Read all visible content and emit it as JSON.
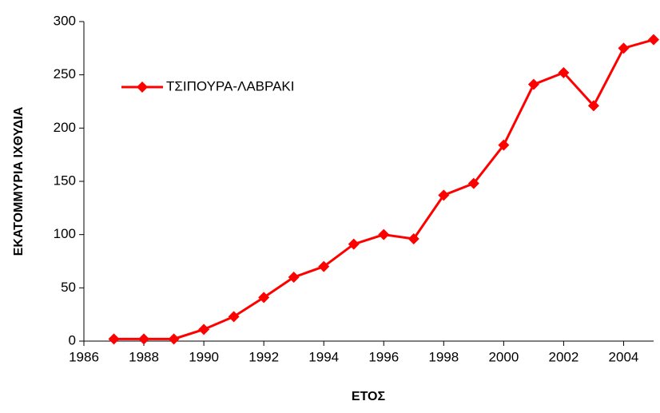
{
  "chart_data": {
    "type": "line",
    "x": [
      1987,
      1988,
      1989,
      1990,
      1991,
      1992,
      1993,
      1994,
      1995,
      1996,
      1997,
      1998,
      1999,
      2000,
      2001,
      2002,
      2003,
      2004,
      2005
    ],
    "series": [
      {
        "name": "ΤΣΙΠΟΥΡΑ-ΛΑΒΡΑΚΙ",
        "color": "#ff0000",
        "values": [
          2,
          2,
          2,
          11,
          23,
          41,
          60,
          70,
          91,
          100,
          96,
          137,
          148,
          184,
          241,
          252,
          221,
          275,
          283
        ]
      }
    ],
    "xlim": [
      1986,
      2005
    ],
    "xticks": [
      1986,
      1988,
      1990,
      1992,
      1994,
      1996,
      1998,
      2000,
      2002,
      2004
    ],
    "ylim": [
      0,
      300
    ],
    "yticks": [
      0,
      50,
      100,
      150,
      200,
      250,
      300
    ],
    "xlabel": "ΕΤΟΣ",
    "ylabel": "ΕΚΑΤΟΜΜΥΡΙΑ ΙΧΘΥΔΙΑ",
    "grid": false,
    "legend": "upper left"
  }
}
